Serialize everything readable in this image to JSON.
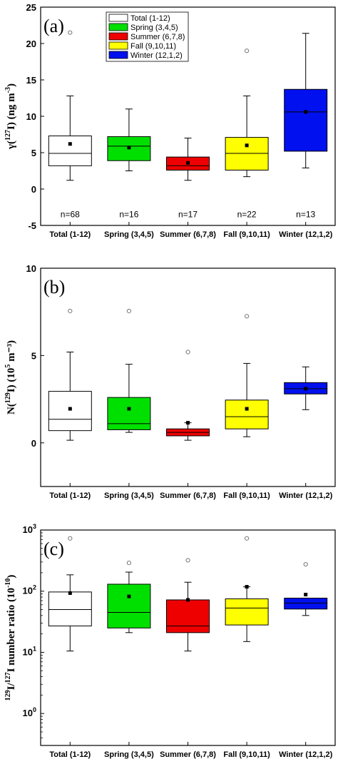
{
  "chart_data": [
    {
      "type": "box",
      "panel_label": "(a)",
      "ylabel_main": "γ(",
      "ylabel_sup": "127",
      "ylabel_after": "I)   (ng m",
      "ylabel_unit_sup": "-3",
      "ylabel_end": ")",
      "ylim": [
        -5,
        25
      ],
      "yticks": [
        -5,
        0,
        5,
        10,
        15,
        20,
        25
      ],
      "categories": [
        "Total (1-12)",
        "Spring (3,4,5)",
        "Summer (6,7,8)",
        "Fall (9,10,11)",
        "Winter (12,1,2)"
      ],
      "colors": [
        "#ffffff",
        "#00e000",
        "#ee0000",
        "#ffff00",
        "#0010ee"
      ],
      "boxes": [
        {
          "min": 1.2,
          "q1": 3.2,
          "median": 4.9,
          "q3": 7.3,
          "max": 12.8,
          "mean": 6.2,
          "outliers": [
            21.5
          ]
        },
        {
          "min": 2.5,
          "q1": 3.9,
          "median": 5.9,
          "q3": 7.2,
          "max": 11.0,
          "mean": 5.7,
          "outliers": []
        },
        {
          "min": 1.2,
          "q1": 2.6,
          "median": 3.2,
          "q3": 4.4,
          "max": 7.0,
          "mean": 3.6,
          "outliers": []
        },
        {
          "min": 1.7,
          "q1": 2.6,
          "median": 4.9,
          "q3": 7.1,
          "max": 12.8,
          "mean": 6.0,
          "outliers": [
            19.0
          ]
        },
        {
          "min": 2.9,
          "q1": 5.2,
          "median": 10.6,
          "q3": 13.7,
          "max": 21.4,
          "mean": 10.6,
          "outliers": []
        }
      ],
      "n_labels": [
        "n=68",
        "n=16",
        "n=17",
        "n=22",
        "n=13"
      ],
      "legend": [
        "Total (1-12)",
        "Spring (3,4,5)",
        "Summer (6,7,8)",
        "Fall (9,10,11)",
        "Winter (12,1,2)"
      ]
    },
    {
      "type": "box",
      "panel_label": "(b)",
      "ylabel_main": "N(",
      "ylabel_sup": "129",
      "ylabel_after": "I)   (10",
      "ylabel_unit_sup": "5",
      "ylabel_end": " m⁻³)",
      "ylim": [
        -2.5,
        10
      ],
      "yticks": [
        0,
        5,
        10
      ],
      "categories": [
        "Total (1-12)",
        "Spring (3,4,5)",
        "Summer (6,7,8)",
        "Fall (9,10,11)",
        "Winter (12,1,2)"
      ],
      "colors": [
        "#ffffff",
        "#00e000",
        "#ee0000",
        "#ffff00",
        "#0010ee"
      ],
      "boxes": [
        {
          "min": 0.15,
          "q1": 0.7,
          "median": 1.35,
          "q3": 2.95,
          "max": 5.2,
          "mean": 1.95,
          "outliers": [
            7.55
          ]
        },
        {
          "min": 0.6,
          "q1": 0.75,
          "median": 1.1,
          "q3": 2.6,
          "max": 4.5,
          "mean": 1.95,
          "outliers": [
            7.55
          ]
        },
        {
          "min": 0.15,
          "q1": 0.4,
          "median": 0.6,
          "q3": 0.8,
          "max": 1.15,
          "mean": 1.15,
          "outliers": [
            5.2
          ]
        },
        {
          "min": 0.35,
          "q1": 0.8,
          "median": 1.5,
          "q3": 2.45,
          "max": 4.55,
          "mean": 1.95,
          "outliers": [
            7.25
          ]
        },
        {
          "min": 1.9,
          "q1": 2.8,
          "median": 3.1,
          "q3": 3.45,
          "max": 4.35,
          "mean": 3.1,
          "outliers": []
        }
      ]
    },
    {
      "type": "box",
      "panel_label": "(c)",
      "yscale": "log",
      "ylabel_sup_pre": "129",
      "ylabel_main": "I/",
      "ylabel_sup": "127",
      "ylabel_after": "I number ratio  (10",
      "ylabel_unit_sup": "-10",
      "ylabel_end": ")",
      "ylim": [
        0.3,
        1000
      ],
      "yticks": [
        1,
        10,
        100,
        1000
      ],
      "categories": [
        "Total (1-12)",
        "Spring (3,4,5)",
        "Summer (6,7,8)",
        "Fall (9,10,11)",
        "Winter (12,1,2)"
      ],
      "colors": [
        "#ffffff",
        "#00e000",
        "#ee0000",
        "#ffff00",
        "#0010ee"
      ],
      "boxes": [
        {
          "min": 10.5,
          "q1": 27,
          "median": 50,
          "q3": 97,
          "max": 185,
          "mean": 93,
          "outliers": [
            730
          ]
        },
        {
          "min": 21,
          "q1": 25,
          "median": 45,
          "q3": 130,
          "max": 205,
          "mean": 82,
          "outliers": [
            290
          ]
        },
        {
          "min": 10.5,
          "q1": 21,
          "median": 27,
          "q3": 72,
          "max": 140,
          "mean": 72,
          "outliers": [
            320
          ]
        },
        {
          "min": 15,
          "q1": 28,
          "median": 53,
          "q3": 75,
          "max": 118,
          "mean": 118,
          "outliers": [
            730
          ]
        },
        {
          "min": 40,
          "q1": 51,
          "median": 64,
          "q3": 77,
          "max": 77,
          "mean": 88,
          "outliers": [
            275
          ]
        }
      ]
    }
  ]
}
